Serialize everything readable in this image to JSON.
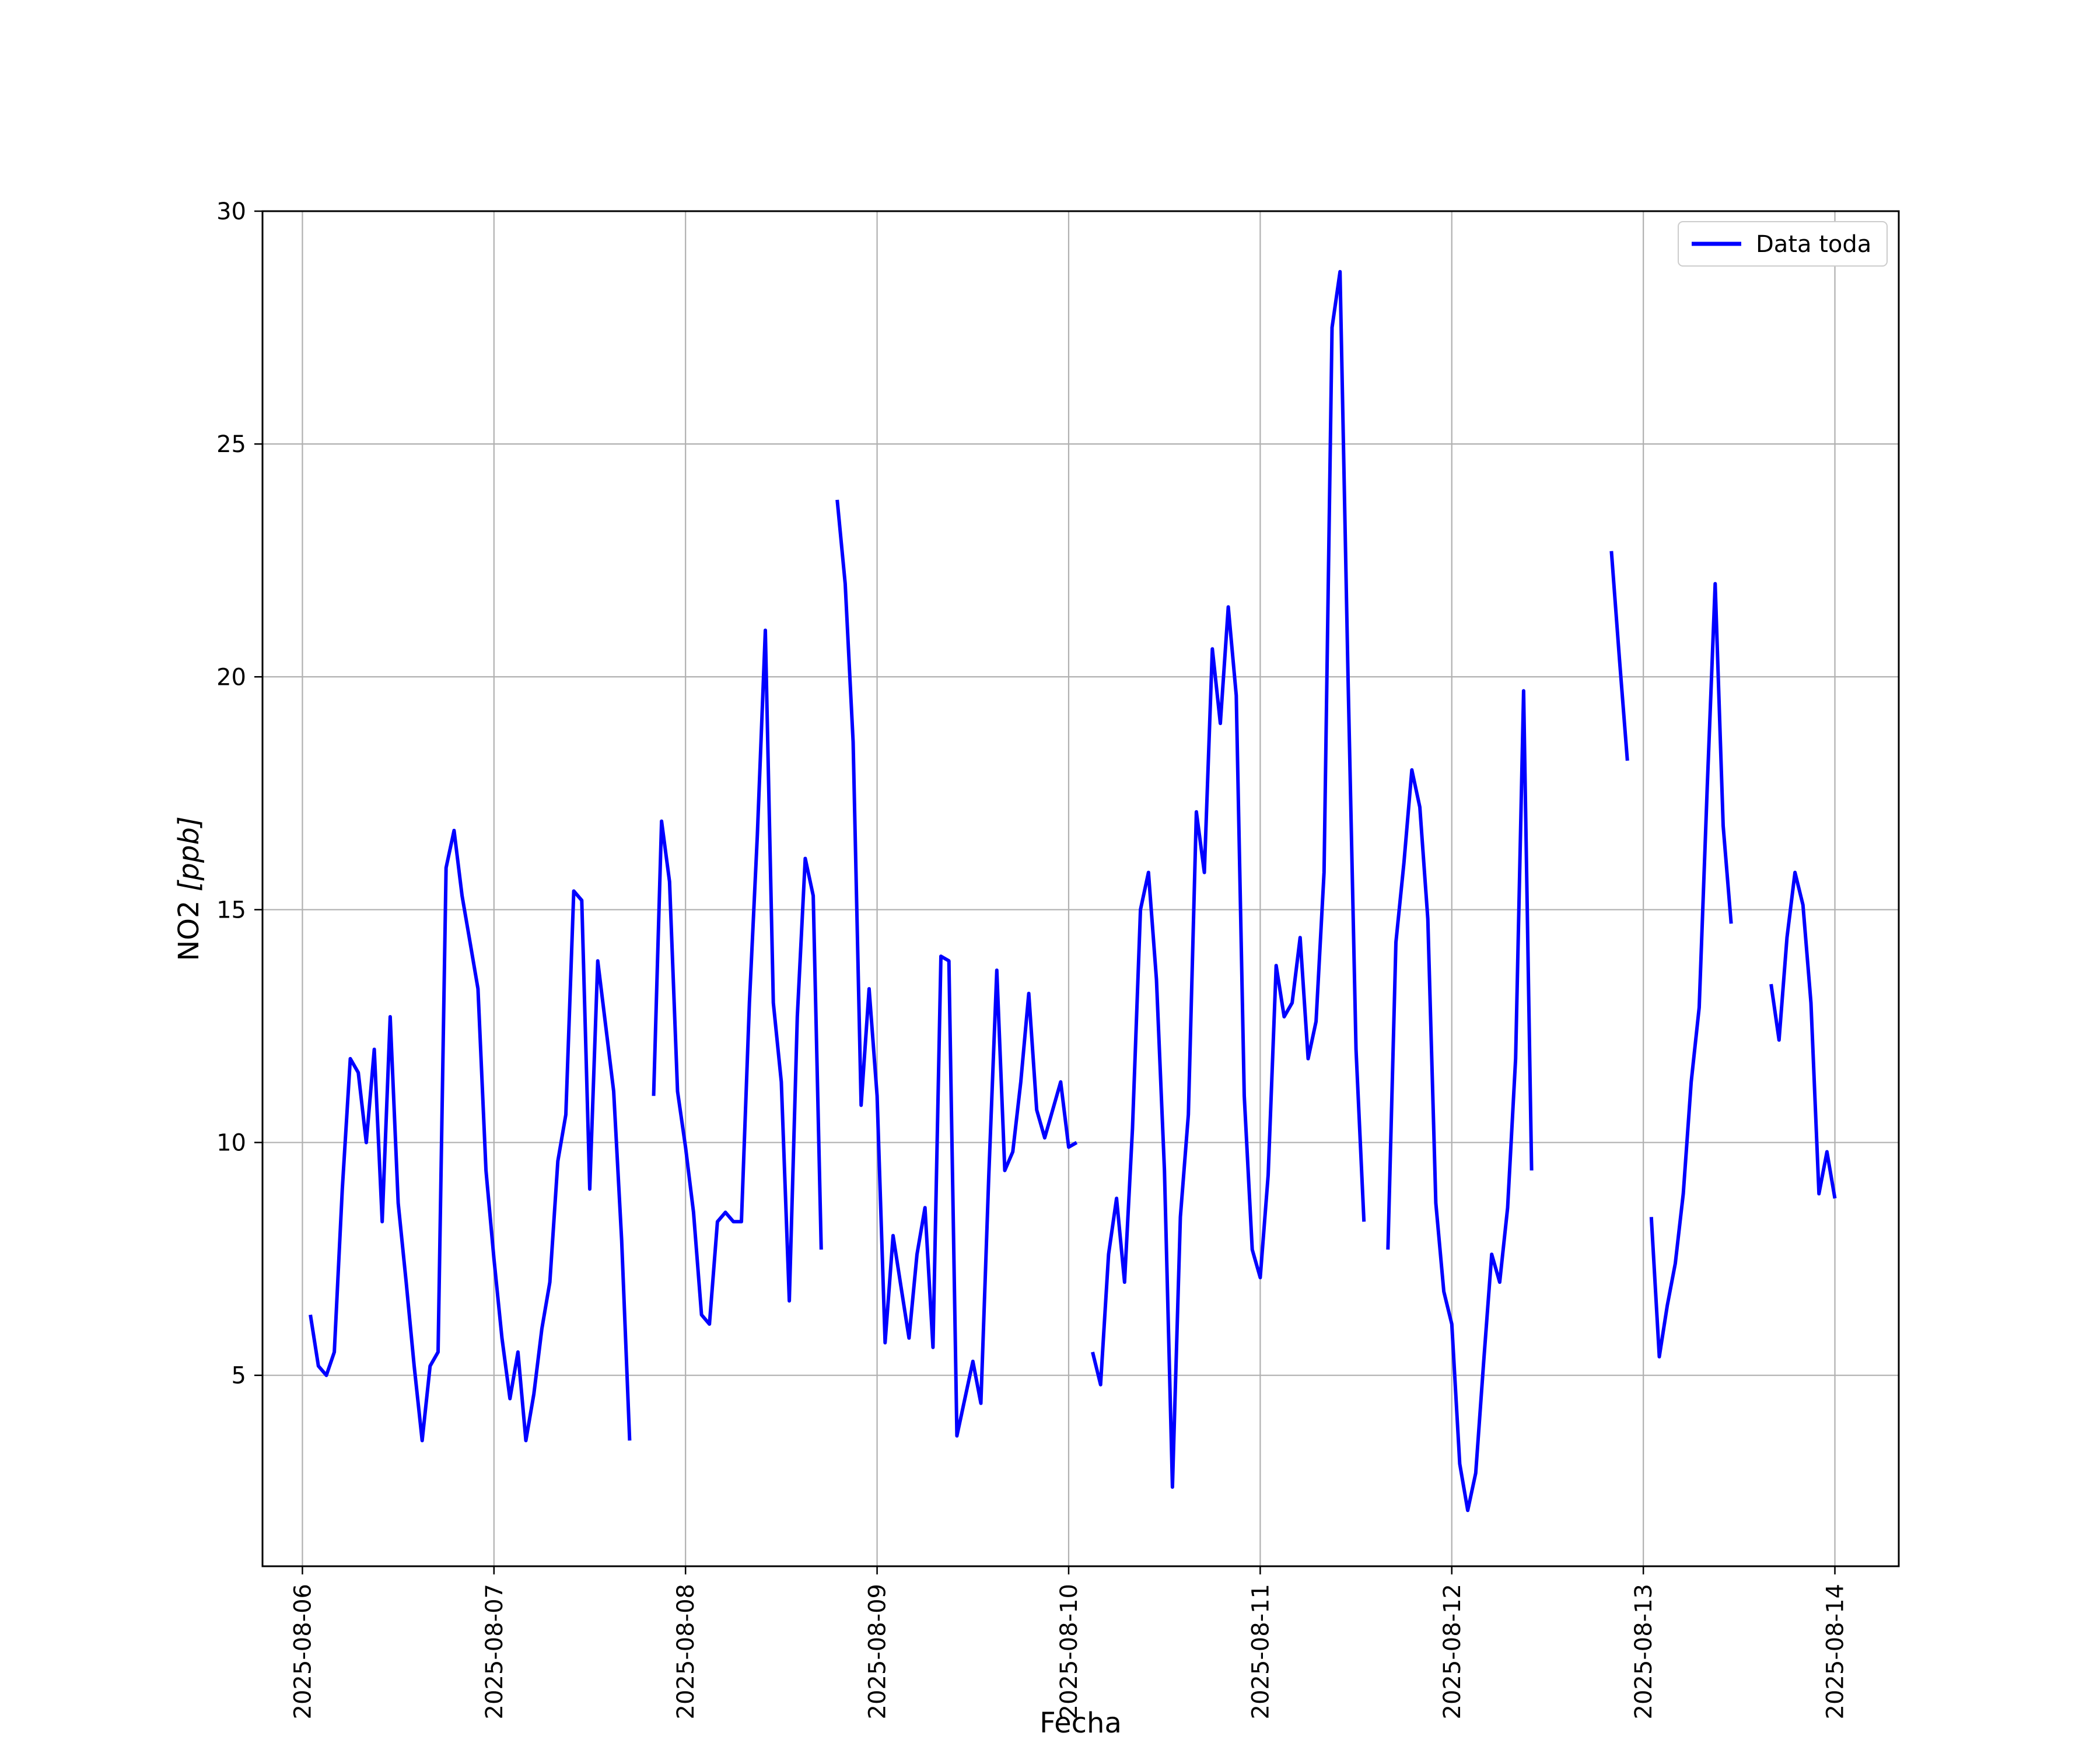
{
  "chart_data": {
    "type": "line",
    "title": "",
    "xlabel": "Fecha",
    "ylabel_main": "NO2 ",
    "ylabel_unit": "[ppb]",
    "xlim": [
      "2025-08-05T19:00",
      "2025-08-14T08:00"
    ],
    "ylim": [
      0.9,
      30
    ],
    "x_ticks": [
      "2025-08-06",
      "2025-08-07",
      "2025-08-08",
      "2025-08-09",
      "2025-08-10",
      "2025-08-11",
      "2025-08-12",
      "2025-08-13",
      "2025-08-14"
    ],
    "y_ticks": [
      5,
      10,
      15,
      20,
      25,
      30
    ],
    "grid": true,
    "legend_position": "top-right",
    "colors": {
      "series": "#0000ff",
      "grid": "#b0b0b0",
      "axes": "#000000"
    },
    "series": [
      {
        "name": "Data toda",
        "segments": [
          [
            [
              "2025-08-06T01:00",
              6.3
            ],
            [
              "2025-08-06T02:00",
              5.2
            ],
            [
              "2025-08-06T03:00",
              5.0
            ],
            [
              "2025-08-06T04:00",
              5.5
            ],
            [
              "2025-08-06T05:00",
              9.0
            ],
            [
              "2025-08-06T06:00",
              11.8
            ],
            [
              "2025-08-06T07:00",
              11.5
            ],
            [
              "2025-08-06T08:00",
              10.0
            ],
            [
              "2025-08-06T09:00",
              12.0
            ],
            [
              "2025-08-06T10:00",
              8.3
            ],
            [
              "2025-08-06T11:00",
              12.7
            ],
            [
              "2025-08-06T12:00",
              8.7
            ],
            [
              "2025-08-06T13:00",
              7.0
            ],
            [
              "2025-08-06T14:00",
              5.2
            ],
            [
              "2025-08-06T15:00",
              3.6
            ],
            [
              "2025-08-06T16:00",
              5.2
            ],
            [
              "2025-08-06T17:00",
              5.5
            ],
            [
              "2025-08-06T18:00",
              15.9
            ],
            [
              "2025-08-06T19:00",
              16.7
            ],
            [
              "2025-08-06T20:00",
              15.3
            ],
            [
              "2025-08-06T21:00",
              14.3
            ],
            [
              "2025-08-06T22:00",
              13.3
            ],
            [
              "2025-08-06T23:00",
              9.4
            ],
            [
              "2025-08-07T00:00",
              7.5
            ],
            [
              "2025-08-07T01:00",
              5.8
            ],
            [
              "2025-08-07T02:00",
              4.5
            ],
            [
              "2025-08-07T03:00",
              5.5
            ],
            [
              "2025-08-07T04:00",
              3.6
            ],
            [
              "2025-08-07T05:00",
              4.6
            ],
            [
              "2025-08-07T06:00",
              6.0
            ],
            [
              "2025-08-07T07:00",
              7.0
            ],
            [
              "2025-08-07T08:00",
              9.6
            ],
            [
              "2025-08-07T09:00",
              10.6
            ],
            [
              "2025-08-07T10:00",
              15.4
            ],
            [
              "2025-08-07T11:00",
              15.2
            ],
            [
              "2025-08-07T12:00",
              9.0
            ],
            [
              "2025-08-07T13:00",
              13.9
            ],
            [
              "2025-08-07T14:00",
              12.5
            ],
            [
              "2025-08-07T15:00",
              11.1
            ],
            [
              "2025-08-07T16:00",
              7.9
            ],
            [
              "2025-08-07T17:00",
              3.6
            ]
          ],
          [
            [
              "2025-08-07T20:00",
              11.0
            ],
            [
              "2025-08-07T21:00",
              16.9
            ],
            [
              "2025-08-07T22:00",
              15.6
            ],
            [
              "2025-08-07T23:00",
              11.1
            ],
            [
              "2025-08-08T00:00",
              9.9
            ],
            [
              "2025-08-08T01:00",
              8.5
            ],
            [
              "2025-08-08T02:00",
              6.3
            ],
            [
              "2025-08-08T03:00",
              6.1
            ],
            [
              "2025-08-08T04:00",
              8.3
            ],
            [
              "2025-08-08T05:00",
              8.5
            ],
            [
              "2025-08-08T06:00",
              8.3
            ],
            [
              "2025-08-08T07:00",
              8.3
            ],
            [
              "2025-08-08T08:00",
              13.0
            ],
            [
              "2025-08-08T09:00",
              16.6
            ],
            [
              "2025-08-08T10:00",
              21.0
            ],
            [
              "2025-08-08T11:00",
              13.0
            ],
            [
              "2025-08-08T12:00",
              11.3
            ],
            [
              "2025-08-08T13:00",
              6.6
            ],
            [
              "2025-08-08T14:00",
              12.7
            ],
            [
              "2025-08-08T15:00",
              16.1
            ],
            [
              "2025-08-08T16:00",
              15.3
            ],
            [
              "2025-08-08T17:00",
              7.7
            ]
          ],
          [
            [
              "2025-08-08T19:00",
              23.8
            ],
            [
              "2025-08-08T20:00",
              22.0
            ],
            [
              "2025-08-08T21:00",
              18.6
            ],
            [
              "2025-08-08T22:00",
              10.8
            ],
            [
              "2025-08-08T23:00",
              13.3
            ],
            [
              "2025-08-09T00:00",
              11.0
            ],
            [
              "2025-08-09T01:00",
              5.7
            ],
            [
              "2025-08-09T02:00",
              8.0
            ],
            [
              "2025-08-09T03:00",
              6.9
            ],
            [
              "2025-08-09T04:00",
              5.8
            ],
            [
              "2025-08-09T05:00",
              7.6
            ],
            [
              "2025-08-09T06:00",
              8.6
            ],
            [
              "2025-08-09T07:00",
              5.6
            ],
            [
              "2025-08-09T08:00",
              14.0
            ],
            [
              "2025-08-09T09:00",
              13.9
            ],
            [
              "2025-08-09T10:00",
              3.7
            ],
            [
              "2025-08-09T11:00",
              4.5
            ],
            [
              "2025-08-09T12:00",
              5.3
            ],
            [
              "2025-08-09T13:00",
              4.4
            ],
            [
              "2025-08-09T14:00",
              9.3
            ],
            [
              "2025-08-09T15:00",
              13.7
            ],
            [
              "2025-08-09T16:00",
              9.4
            ],
            [
              "2025-08-09T17:00",
              9.8
            ],
            [
              "2025-08-09T18:00",
              11.3
            ],
            [
              "2025-08-09T19:00",
              13.2
            ],
            [
              "2025-08-09T20:00",
              10.7
            ],
            [
              "2025-08-09T21:00",
              10.1
            ],
            [
              "2025-08-09T22:00",
              10.7
            ],
            [
              "2025-08-09T23:00",
              11.3
            ],
            [
              "2025-08-10T00:00",
              9.9
            ],
            [
              "2025-08-10T01:00",
              10.0
            ]
          ],
          [
            [
              "2025-08-10T03:00",
              5.5
            ],
            [
              "2025-08-10T04:00",
              4.8
            ],
            [
              "2025-08-10T05:00",
              7.6
            ],
            [
              "2025-08-10T06:00",
              8.8
            ],
            [
              "2025-08-10T07:00",
              7.0
            ],
            [
              "2025-08-10T08:00",
              10.3
            ],
            [
              "2025-08-10T09:00",
              15.0
            ],
            [
              "2025-08-10T10:00",
              15.8
            ],
            [
              "2025-08-10T11:00",
              13.5
            ],
            [
              "2025-08-10T12:00",
              9.4
            ],
            [
              "2025-08-10T13:00",
              2.6
            ],
            [
              "2025-08-10T14:00",
              8.4
            ],
            [
              "2025-08-10T15:00",
              10.6
            ],
            [
              "2025-08-10T16:00",
              17.1
            ],
            [
              "2025-08-10T17:00",
              15.8
            ],
            [
              "2025-08-10T18:00",
              20.6
            ],
            [
              "2025-08-10T19:00",
              19.0
            ],
            [
              "2025-08-10T20:00",
              21.5
            ],
            [
              "2025-08-10T21:00",
              19.6
            ],
            [
              "2025-08-10T22:00",
              11.0
            ],
            [
              "2025-08-10T23:00",
              7.7
            ],
            [
              "2025-08-11T00:00",
              7.1
            ],
            [
              "2025-08-11T01:00",
              9.3
            ],
            [
              "2025-08-11T02:00",
              13.8
            ],
            [
              "2025-08-11T03:00",
              12.7
            ],
            [
              "2025-08-11T04:00",
              13.0
            ],
            [
              "2025-08-11T05:00",
              14.4
            ],
            [
              "2025-08-11T06:00",
              11.8
            ],
            [
              "2025-08-11T07:00",
              12.6
            ],
            [
              "2025-08-11T08:00",
              15.8
            ],
            [
              "2025-08-11T09:00",
              27.5
            ],
            [
              "2025-08-11T10:00",
              28.7
            ],
            [
              "2025-08-11T11:00",
              20.0
            ],
            [
              "2025-08-11T12:00",
              12.0
            ],
            [
              "2025-08-11T13:00",
              8.3
            ]
          ],
          [
            [
              "2025-08-11T16:00",
              7.7
            ],
            [
              "2025-08-11T17:00",
              14.3
            ],
            [
              "2025-08-11T18:00",
              16.0
            ],
            [
              "2025-08-11T19:00",
              18.0
            ],
            [
              "2025-08-11T20:00",
              17.2
            ],
            [
              "2025-08-11T21:00",
              14.8
            ],
            [
              "2025-08-11T22:00",
              8.7
            ],
            [
              "2025-08-11T23:00",
              6.8
            ],
            [
              "2025-08-12T00:00",
              6.1
            ],
            [
              "2025-08-12T01:00",
              3.1
            ],
            [
              "2025-08-12T02:00",
              2.1
            ],
            [
              "2025-08-12T03:00",
              2.9
            ],
            [
              "2025-08-12T04:00",
              5.3
            ],
            [
              "2025-08-12T05:00",
              7.6
            ],
            [
              "2025-08-12T06:00",
              7.0
            ],
            [
              "2025-08-12T07:00",
              8.6
            ],
            [
              "2025-08-12T08:00",
              11.8
            ],
            [
              "2025-08-12T09:00",
              19.7
            ],
            [
              "2025-08-12T10:00",
              9.4
            ]
          ],
          [
            [
              "2025-08-12T20:00",
              22.7
            ],
            [
              "2025-08-12T21:00",
              20.4
            ],
            [
              "2025-08-12T22:00",
              18.2
            ]
          ],
          [
            [
              "2025-08-13T01:00",
              8.4
            ],
            [
              "2025-08-13T02:00",
              5.4
            ],
            [
              "2025-08-13T03:00",
              6.5
            ],
            [
              "2025-08-13T04:00",
              7.4
            ],
            [
              "2025-08-13T05:00",
              8.9
            ],
            [
              "2025-08-13T06:00",
              11.3
            ],
            [
              "2025-08-13T07:00",
              12.9
            ],
            [
              "2025-08-13T08:00",
              17.6
            ],
            [
              "2025-08-13T09:00",
              22.0
            ],
            [
              "2025-08-13T10:00",
              16.8
            ],
            [
              "2025-08-13T11:00",
              14.7
            ]
          ],
          [
            [
              "2025-08-13T16:00",
              13.4
            ],
            [
              "2025-08-13T17:00",
              12.2
            ],
            [
              "2025-08-13T18:00",
              14.4
            ],
            [
              "2025-08-13T19:00",
              15.8
            ],
            [
              "2025-08-13T20:00",
              15.1
            ],
            [
              "2025-08-13T21:00",
              13.0
            ],
            [
              "2025-08-13T22:00",
              8.9
            ],
            [
              "2025-08-13T23:00",
              9.8
            ],
            [
              "2025-08-14T00:00",
              8.8
            ]
          ]
        ]
      }
    ]
  }
}
